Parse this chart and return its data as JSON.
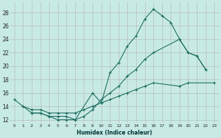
{
  "xlabel": "Humidex (Indice chaleur)",
  "bg_color": "#c8eae4",
  "line_color": "#1a6b5e",
  "grid_color": "#b0b0b0",
  "xlim": [
    -0.5,
    23.5
  ],
  "ylim": [
    11.5,
    29.5
  ],
  "xticks": [
    0,
    1,
    2,
    3,
    4,
    5,
    6,
    7,
    8,
    9,
    10,
    11,
    12,
    13,
    14,
    15,
    16,
    17,
    18,
    19,
    20,
    21,
    22,
    23
  ],
  "yticks": [
    12,
    14,
    16,
    18,
    20,
    22,
    24,
    26,
    28
  ],
  "s1_x": [
    0,
    1,
    2,
    3,
    4,
    5,
    6,
    7,
    9,
    10,
    11,
    12,
    13,
    14,
    15,
    16,
    17,
    18,
    19,
    20,
    21,
    22
  ],
  "s1_y": [
    15,
    14,
    13,
    13,
    12.5,
    12,
    12,
    12,
    16,
    14.5,
    19,
    20.5,
    23,
    24.5,
    27,
    28.5,
    27.5,
    26.5,
    24,
    22,
    21.5,
    19.5
  ],
  "s2_x": [
    2,
    3,
    4,
    5,
    6,
    7,
    8,
    9,
    10,
    11,
    12,
    13,
    14,
    15,
    16,
    19,
    20,
    21,
    22,
    23
  ],
  "s2_y": [
    13,
    13,
    12.5,
    12.5,
    12.5,
    12,
    12.5,
    13.5,
    15,
    16,
    17,
    18.5,
    19.5,
    21,
    22,
    24,
    22,
    21.5,
    19.5,
    null
  ],
  "s3_x": [
    1,
    2,
    3,
    4,
    5,
    6,
    7,
    8,
    9,
    10,
    11,
    12,
    13,
    14,
    15,
    16,
    19,
    20,
    23
  ],
  "s3_y": [
    14,
    13.5,
    13.5,
    13,
    13,
    13,
    13,
    13.5,
    14,
    14.5,
    15,
    15.5,
    16,
    16.5,
    17,
    17.5,
    17,
    17.5,
    17.5
  ]
}
